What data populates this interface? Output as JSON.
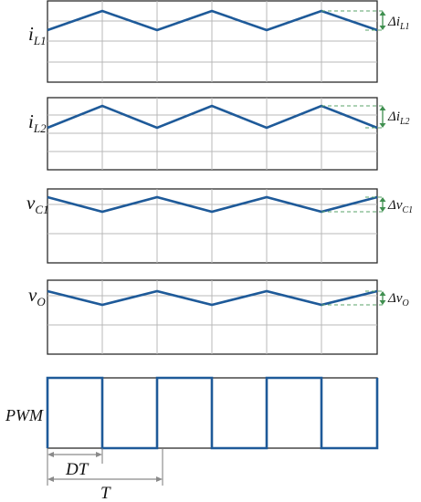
{
  "diagram": {
    "colors": {
      "waveform": "#1e5a99",
      "ripple_marker": "#3f8f4f",
      "frame": "#2b2b2b",
      "grid": "#b9b9b9",
      "time_marker": "#8a8a8a"
    },
    "panels": [
      {
        "id": "il1",
        "label_main": "i",
        "label_sub": "L1",
        "delta_symbol": "Δ",
        "delta_main": "i",
        "delta_sub": "L1"
      },
      {
        "id": "il2",
        "label_main": "i",
        "label_sub": "L2",
        "delta_symbol": "Δ",
        "delta_main": "i",
        "delta_sub": "L2"
      },
      {
        "id": "vc1",
        "label_main": "v",
        "label_sub": "C1",
        "delta_symbol": "Δ",
        "delta_main": "v",
        "delta_sub": "C1"
      },
      {
        "id": "vo",
        "label_main": "v",
        "label_sub": "O",
        "delta_symbol": "Δ",
        "delta_main": "v",
        "delta_sub": "O"
      },
      {
        "id": "pwm",
        "label_main": "PWM"
      }
    ],
    "time_markers": {
      "dt_label": "DT",
      "t_label": "T"
    }
  }
}
